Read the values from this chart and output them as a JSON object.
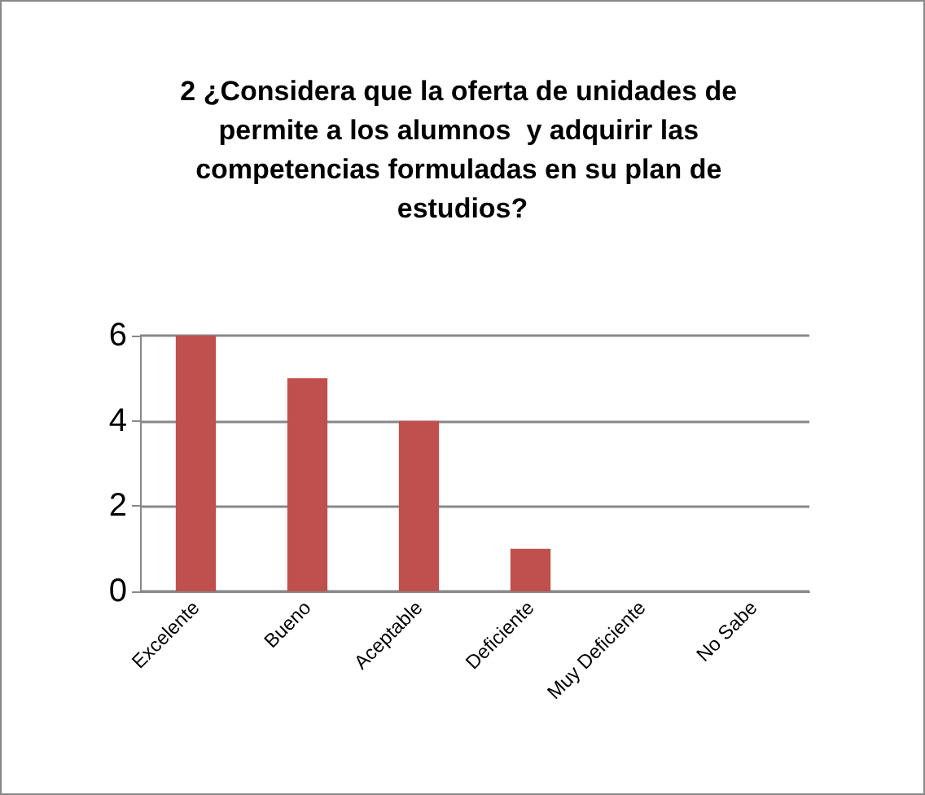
{
  "chart_data": {
    "type": "bar",
    "title": "2 ¿Considera que la oferta de unidades de permite a los alumnos  y adquirir las competencias formuladas en su plan de estudios?",
    "categories": [
      "Excelente",
      "Bueno",
      "Aceptable",
      "Deficiente",
      "Muy Deficiente",
      "No Sabe"
    ],
    "values": [
      6,
      5,
      4,
      1,
      0,
      0
    ],
    "color": "#c0504d",
    "ylim": [
      0,
      6
    ],
    "yticks": [
      0,
      2,
      4,
      6
    ],
    "grid": "y"
  }
}
